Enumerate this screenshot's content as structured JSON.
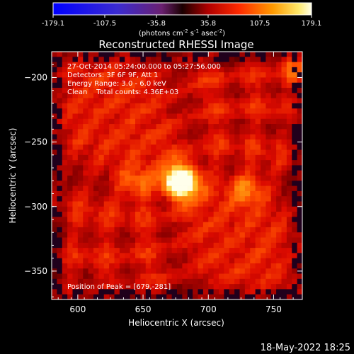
{
  "chart_data": {
    "type": "heatmap",
    "title": "Reconstructed RHESSI Image",
    "xlabel": "Heliocentric X (arcsec)",
    "ylabel": "Heliocentric Y (arcsec)",
    "xlim": [
      580,
      772
    ],
    "ylim": [
      -372,
      -180
    ],
    "x_ticks": [
      600,
      650,
      700,
      750
    ],
    "y_ticks": [
      -200,
      -250,
      -300,
      -350
    ],
    "colorbar": {
      "ticks": [
        "-179.1",
        "-107.5",
        "-35.8",
        "35.8",
        "107.5",
        "179.1"
      ],
      "range": [
        -179.1,
        179.1
      ],
      "unit_label": "(photons cm",
      "unit_exp1": "-2",
      "unit_mid": " s",
      "unit_exp2": "-1",
      "unit_mid2": " asec",
      "unit_exp3": "-2",
      "unit_end": ")"
    },
    "info_lines": [
      "27-Oct-2014 05:24:00.000 to 05:27:56.000",
      "Detectors: 3F 6F 9F, Att 1",
      "Energy Range: 3.0 - 6.0 keV",
      "Clean    Total counts: 4.36E+03"
    ],
    "peak_label": "Position of Peak = [679,-281]",
    "peak_position": [
      679,
      -281
    ],
    "peak_value": 179.1,
    "sources": [
      {
        "x": 679,
        "y": -281,
        "amplitude": 179.1
      },
      {
        "x": 730,
        "y": -287,
        "amplitude": 60
      },
      {
        "x": 644,
        "y": -283,
        "amplitude": 50
      },
      {
        "x": 768,
        "y": -195,
        "amplitude": 55
      }
    ],
    "footer_timestamp": "18-May-2022 18:25"
  }
}
